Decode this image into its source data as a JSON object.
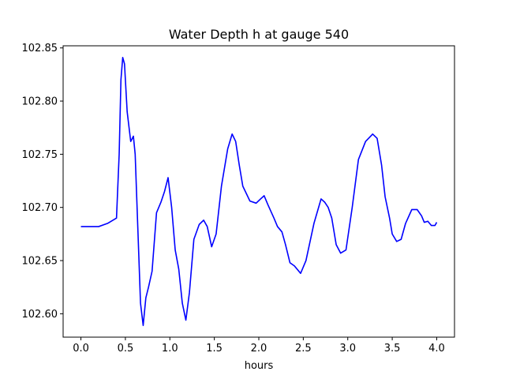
{
  "chart_data": {
    "type": "line",
    "title": "Water Depth h at gauge 540",
    "xlabel": "hours",
    "ylabel": "",
    "xlim": [
      -0.2,
      4.2
    ],
    "ylim": [
      102.578,
      102.852
    ],
    "xticks": [
      0.0,
      0.5,
      1.0,
      1.5,
      2.0,
      2.5,
      3.0,
      3.5,
      4.0
    ],
    "xtick_labels": [
      "0.0",
      "0.5",
      "1.0",
      "1.5",
      "2.0",
      "2.5",
      "3.0",
      "3.5",
      "4.0"
    ],
    "yticks": [
      102.6,
      102.65,
      102.7,
      102.75,
      102.8,
      102.85
    ],
    "ytick_labels": [
      "102.60",
      "102.65",
      "102.70",
      "102.75",
      "102.80",
      "102.85"
    ],
    "grid": false,
    "legend": "none",
    "series": [
      {
        "color": "#0000ff",
        "points": [
          [
            0.0,
            102.682
          ],
          [
            0.2,
            102.682
          ],
          [
            0.3,
            102.685
          ],
          [
            0.4,
            102.69
          ],
          [
            0.43,
            102.75
          ],
          [
            0.45,
            102.82
          ],
          [
            0.47,
            102.841
          ],
          [
            0.49,
            102.835
          ],
          [
            0.52,
            102.79
          ],
          [
            0.56,
            102.762
          ],
          [
            0.59,
            102.767
          ],
          [
            0.61,
            102.75
          ],
          [
            0.64,
            102.68
          ],
          [
            0.67,
            102.61
          ],
          [
            0.7,
            102.589
          ],
          [
            0.73,
            102.615
          ],
          [
            0.76,
            102.625
          ],
          [
            0.8,
            102.64
          ],
          [
            0.85,
            102.695
          ],
          [
            0.9,
            102.705
          ],
          [
            0.94,
            102.715
          ],
          [
            0.98,
            102.728
          ],
          [
            1.02,
            102.7
          ],
          [
            1.06,
            102.66
          ],
          [
            1.1,
            102.642
          ],
          [
            1.14,
            102.61
          ],
          [
            1.18,
            102.594
          ],
          [
            1.22,
            102.62
          ],
          [
            1.27,
            102.67
          ],
          [
            1.33,
            102.684
          ],
          [
            1.38,
            102.688
          ],
          [
            1.42,
            102.682
          ],
          [
            1.47,
            102.663
          ],
          [
            1.52,
            102.675
          ],
          [
            1.58,
            102.72
          ],
          [
            1.65,
            102.755
          ],
          [
            1.7,
            102.769
          ],
          [
            1.74,
            102.762
          ],
          [
            1.78,
            102.74
          ],
          [
            1.82,
            102.72
          ],
          [
            1.9,
            102.706
          ],
          [
            1.97,
            102.704
          ],
          [
            2.02,
            102.708
          ],
          [
            2.06,
            102.711
          ],
          [
            2.1,
            102.703
          ],
          [
            2.17,
            102.69
          ],
          [
            2.21,
            102.682
          ],
          [
            2.26,
            102.677
          ],
          [
            2.3,
            102.665
          ],
          [
            2.35,
            102.648
          ],
          [
            2.4,
            102.645
          ],
          [
            2.47,
            102.638
          ],
          [
            2.53,
            102.65
          ],
          [
            2.62,
            102.685
          ],
          [
            2.7,
            102.708
          ],
          [
            2.74,
            102.705
          ],
          [
            2.78,
            102.7
          ],
          [
            2.82,
            102.69
          ],
          [
            2.87,
            102.665
          ],
          [
            2.92,
            102.657
          ],
          [
            2.98,
            102.66
          ],
          [
            3.05,
            102.7
          ],
          [
            3.12,
            102.745
          ],
          [
            3.2,
            102.762
          ],
          [
            3.28,
            102.769
          ],
          [
            3.33,
            102.765
          ],
          [
            3.38,
            102.74
          ],
          [
            3.42,
            102.71
          ],
          [
            3.47,
            102.69
          ],
          [
            3.5,
            102.675
          ],
          [
            3.55,
            102.668
          ],
          [
            3.6,
            102.67
          ],
          [
            3.65,
            102.685
          ],
          [
            3.72,
            102.698
          ],
          [
            3.78,
            102.698
          ],
          [
            3.83,
            102.692
          ],
          [
            3.86,
            102.686
          ],
          [
            3.9,
            102.687
          ],
          [
            3.94,
            102.683
          ],
          [
            3.98,
            102.683
          ],
          [
            4.0,
            102.686
          ]
        ]
      }
    ]
  }
}
